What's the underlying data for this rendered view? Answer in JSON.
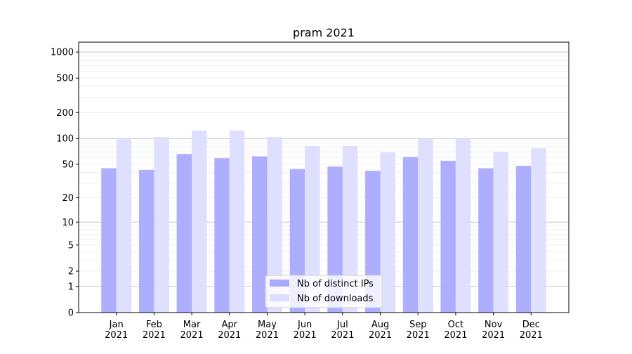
{
  "chart_data": {
    "type": "bar",
    "title": "pram 2021",
    "xlabel": "",
    "ylabel": "",
    "yscale": "log10(1+y)",
    "ylim": [
      0,
      1300
    ],
    "yticks": [
      0,
      1,
      2,
      5,
      10,
      20,
      50,
      100,
      200,
      500,
      1000
    ],
    "grid": true,
    "legend_position": "bottom-center",
    "categories": [
      "Jan\n2021",
      "Feb\n2021",
      "Mar\n2021",
      "Apr\n2021",
      "May\n2021",
      "Jun\n2021",
      "Jul\n2021",
      "Aug\n2021",
      "Sep\n2021",
      "Oct\n2021",
      "Nov\n2021",
      "Dec\n2021"
    ],
    "series": [
      {
        "name": "Nb of distinct IPs",
        "color": "#aaaaff",
        "values": [
          45,
          43,
          66,
          59,
          62,
          44,
          47,
          42,
          61,
          55,
          45,
          48
        ]
      },
      {
        "name": "Nb of downloads",
        "color": "#ddddff",
        "values": [
          102,
          104,
          124,
          124,
          104,
          82,
          82,
          69,
          100,
          102,
          70,
          77
        ]
      }
    ]
  }
}
